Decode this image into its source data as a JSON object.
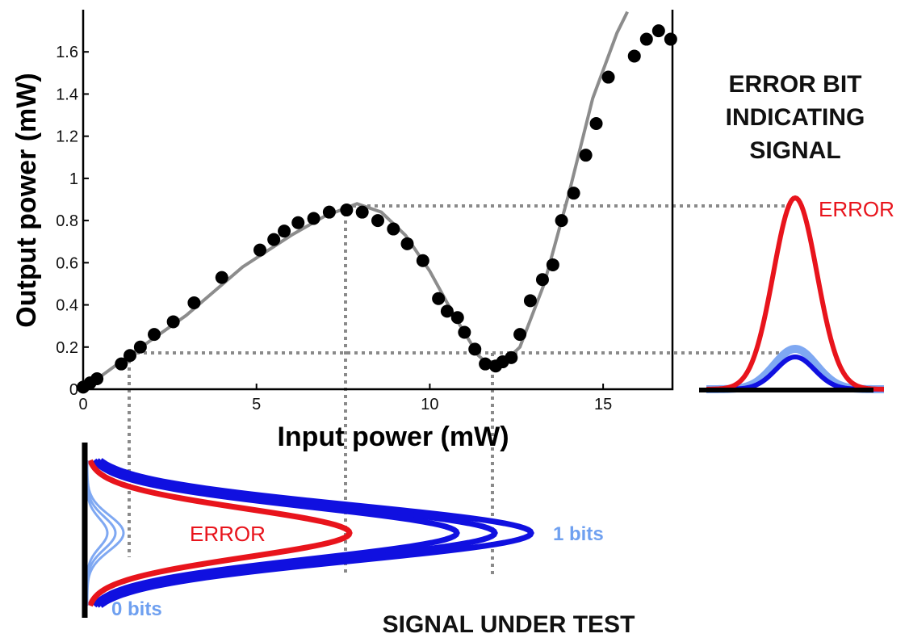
{
  "chart_data": {
    "type": "scatter",
    "xlabel": "Input power (mW)",
    "ylabel": "Output power (mW)",
    "xlim": [
      0,
      17
    ],
    "ylim": [
      0,
      1.8
    ],
    "xticks": [
      0,
      5,
      10,
      15
    ],
    "yticks": [
      0,
      0.2,
      0.4,
      0.6,
      0.8,
      1,
      1.2,
      1.4,
      1.6
    ],
    "series": [
      {
        "style": "markers",
        "color": "#000000",
        "x": [
          0,
          0.2,
          0.4,
          1.1,
          1.35,
          1.65,
          2.05,
          2.6,
          3.2,
          4.0,
          5.1,
          5.5,
          5.8,
          6.2,
          6.65,
          7.1,
          7.6,
          8.05,
          8.5,
          8.95,
          9.35,
          9.8,
          10.25,
          10.5,
          10.8,
          11.0,
          11.3,
          11.6,
          11.9,
          12.1,
          12.35,
          12.6,
          12.9,
          13.25,
          13.55,
          13.8,
          14.15,
          14.5,
          14.8,
          15.15,
          15.9,
          16.25,
          16.6,
          16.95
        ],
        "values": [
          0.01,
          0.03,
          0.05,
          0.12,
          0.16,
          0.2,
          0.26,
          0.32,
          0.41,
          0.53,
          0.66,
          0.71,
          0.75,
          0.79,
          0.81,
          0.84,
          0.85,
          0.84,
          0.8,
          0.76,
          0.69,
          0.61,
          0.43,
          0.37,
          0.34,
          0.27,
          0.19,
          0.12,
          0.11,
          0.13,
          0.15,
          0.26,
          0.42,
          0.52,
          0.59,
          0.8,
          0.93,
          1.11,
          1.26,
          1.48,
          1.58,
          1.66,
          1.7,
          1.66
        ]
      },
      {
        "style": "line",
        "color": "#8c8c8c",
        "x": [
          0,
          1.33,
          2.97,
          4.6,
          6.0,
          6.96,
          7.9,
          8.6,
          9.3,
          10.0,
          10.7,
          11.4,
          11.9,
          12.6,
          13.3,
          14.0,
          14.7,
          15.4,
          15.7
        ],
        "values": [
          0,
          0.16,
          0.35,
          0.58,
          0.73,
          0.82,
          0.88,
          0.84,
          0.73,
          0.56,
          0.35,
          0.16,
          0.09,
          0.2,
          0.5,
          0.92,
          1.38,
          1.69,
          1.79
        ]
      }
    ],
    "annotations": {
      "error_bit_title": [
        "ERROR BIT",
        "INDICATING",
        "SIGNAL"
      ],
      "error_right": "ERROR",
      "error_bottom": "ERROR",
      "one_bits": "1 bits",
      "zero_bits": "0 bits",
      "signal_title": "SIGNAL UNDER TEST"
    }
  }
}
